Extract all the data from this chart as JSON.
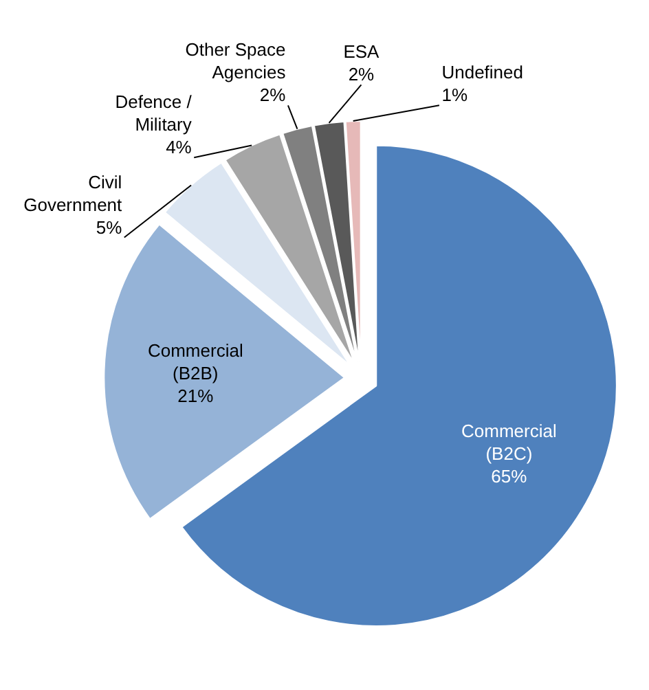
{
  "chart_data": {
    "type": "pie",
    "categories": [
      "Commercial\n(B2C)",
      "Commercial\n(B2B)",
      "Civil\nGovernment",
      "Defence /\nMilitary",
      "Other Space\nAgencies",
      "ESA",
      "Undefined"
    ],
    "values": [
      65,
      21,
      5,
      4,
      2,
      2,
      1
    ],
    "value_labels": [
      "65%",
      "21%",
      "5%",
      "4%",
      "2%",
      "2%",
      "1%"
    ],
    "colors": [
      "#4f81bd",
      "#95b3d7",
      "#dce6f2",
      "#a6a6a6",
      "#808080",
      "#595959",
      "#e6b9b8"
    ]
  }
}
